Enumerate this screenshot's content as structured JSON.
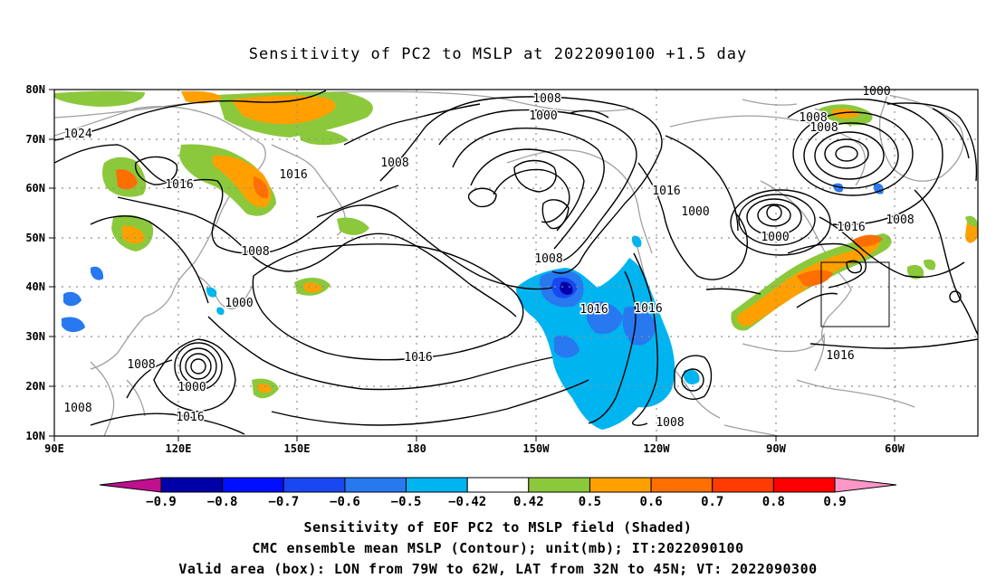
{
  "title": "Sensitivity of PC2 to MSLP at 2022090100 +1.5 day",
  "lat_labels": [
    "80N",
    "70N",
    "60N",
    "50N",
    "40N",
    "30N",
    "20N",
    "10N"
  ],
  "lon_labels": [
    "90E",
    "120E",
    "150E",
    "180",
    "150W",
    "120W",
    "90W",
    "60W"
  ],
  "contour_labels": [
    "1008",
    "1000",
    "1016",
    "1024",
    "1008",
    "1008",
    "1000",
    "1016",
    "1016",
    "1008",
    "1000",
    "1008",
    "1016",
    "1000",
    "1008",
    "1016",
    "1016",
    "1008",
    "1008",
    "1000",
    "1016",
    "1008",
    "1016",
    "1000",
    "1008",
    "1016"
  ],
  "colorbar": {
    "labels": [
      "-0.9",
      "-0.8",
      "-0.7",
      "-0.6",
      "-0.5",
      "-0.42",
      "0.42",
      "0.5",
      "0.6",
      "0.7",
      "0.8",
      "0.9"
    ],
    "colors": {
      "below": "#c0108f",
      "bins": [
        "#0000a8",
        "#0010ff",
        "#1848f0",
        "#2878f0",
        "#00b4f0",
        "#ffffff",
        "#8cc83c",
        "#ffa000",
        "#ff6e00",
        "#ff3c00",
        "#ff0000"
      ],
      "above": "#ff96c8"
    }
  },
  "box": {
    "label": "Valid area (box)",
    "lon_range": [
      "79W",
      "62W"
    ],
    "lat_range": [
      "32N",
      "45N"
    ]
  },
  "captions": {
    "line1": "Sensitivity of EOF PC2 to MSLP field (Shaded)",
    "line2": "CMC ensemble mean MSLP (Contour); unit(mb); IT:2022090100",
    "line3": "Valid area (box): LON from 79W to 62W, LAT from 32N to 45N; VT: 2022090300"
  }
}
